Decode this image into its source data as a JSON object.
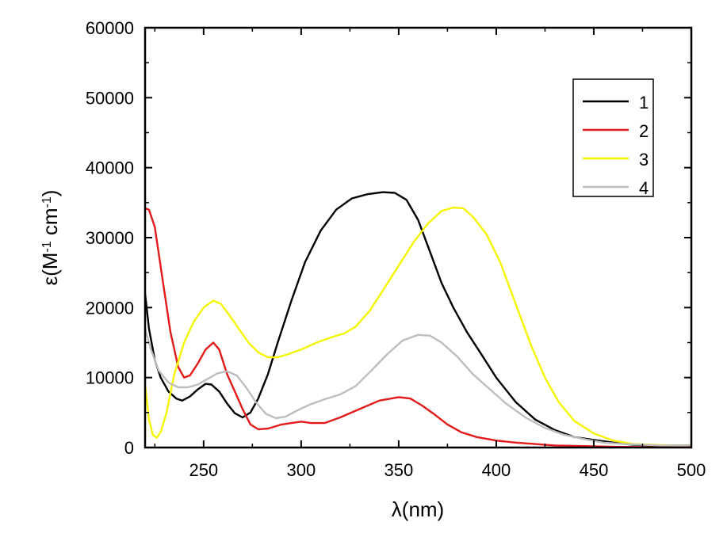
{
  "chart_data": {
    "type": "line",
    "xlabel": "λ(nm)",
    "ylabel": {
      "base": "ε(M",
      "exp1": "-1",
      "mid": " cm",
      "exp2": "-1",
      "end": ")"
    },
    "xlim": [
      220,
      500
    ],
    "ylim": [
      0,
      60000
    ],
    "xticks": [
      250,
      300,
      350,
      400,
      450,
      500
    ],
    "yticks": [
      0,
      10000,
      20000,
      30000,
      40000,
      50000,
      60000
    ],
    "grid": false,
    "legend_position": "top-right",
    "series": [
      {
        "name": "1",
        "color": "#000000",
        "points": [
          [
            220,
            22000
          ],
          [
            222,
            17000
          ],
          [
            225,
            12500
          ],
          [
            228,
            10000
          ],
          [
            232,
            8000
          ],
          [
            236,
            7000
          ],
          [
            239,
            6700
          ],
          [
            243,
            7300
          ],
          [
            247,
            8300
          ],
          [
            251,
            9100
          ],
          [
            254,
            9000
          ],
          [
            258,
            8000
          ],
          [
            262,
            6300
          ],
          [
            266,
            4900
          ],
          [
            270,
            4300
          ],
          [
            274,
            5000
          ],
          [
            278,
            7000
          ],
          [
            283,
            10500
          ],
          [
            288,
            15000
          ],
          [
            295,
            21000
          ],
          [
            302,
            26500
          ],
          [
            310,
            31000
          ],
          [
            318,
            34000
          ],
          [
            326,
            35600
          ],
          [
            334,
            36200
          ],
          [
            342,
            36500
          ],
          [
            348,
            36400
          ],
          [
            354,
            35400
          ],
          [
            360,
            32500
          ],
          [
            366,
            28000
          ],
          [
            372,
            23500
          ],
          [
            378,
            20000
          ],
          [
            385,
            16500
          ],
          [
            392,
            13500
          ],
          [
            400,
            10000
          ],
          [
            410,
            6500
          ],
          [
            420,
            4000
          ],
          [
            430,
            2500
          ],
          [
            440,
            1500
          ],
          [
            450,
            1100
          ],
          [
            460,
            700
          ],
          [
            470,
            400
          ],
          [
            480,
            300
          ],
          [
            490,
            300
          ],
          [
            500,
            300
          ]
        ]
      },
      {
        "name": "2",
        "color": "#e31a1a",
        "points": [
          [
            220,
            34200
          ],
          [
            222,
            34000
          ],
          [
            225,
            31500
          ],
          [
            229,
            24000
          ],
          [
            233,
            16500
          ],
          [
            237,
            11500
          ],
          [
            240,
            10000
          ],
          [
            243,
            10300
          ],
          [
            247,
            12000
          ],
          [
            251,
            14000
          ],
          [
            255,
            15000
          ],
          [
            258,
            14000
          ],
          [
            262,
            10500
          ],
          [
            266,
            8000
          ],
          [
            270,
            5500
          ],
          [
            274,
            3300
          ],
          [
            278,
            2600
          ],
          [
            283,
            2700
          ],
          [
            290,
            3300
          ],
          [
            295,
            3500
          ],
          [
            300,
            3700
          ],
          [
            305,
            3500
          ],
          [
            312,
            3500
          ],
          [
            320,
            4300
          ],
          [
            330,
            5500
          ],
          [
            340,
            6700
          ],
          [
            350,
            7200
          ],
          [
            356,
            7000
          ],
          [
            362,
            6000
          ],
          [
            368,
            4800
          ],
          [
            375,
            3300
          ],
          [
            382,
            2200
          ],
          [
            390,
            1500
          ],
          [
            400,
            1000
          ],
          [
            410,
            700
          ],
          [
            420,
            500
          ],
          [
            430,
            300
          ],
          [
            445,
            200
          ],
          [
            460,
            100
          ],
          [
            480,
            50
          ],
          [
            500,
            30
          ]
        ]
      },
      {
        "name": "3",
        "color": "#f5f500",
        "points": [
          [
            220,
            9000
          ],
          [
            222,
            4000
          ],
          [
            224,
            1800
          ],
          [
            226,
            1400
          ],
          [
            228,
            2200
          ],
          [
            231,
            5000
          ],
          [
            235,
            10500
          ],
          [
            240,
            15000
          ],
          [
            245,
            18000
          ],
          [
            250,
            20000
          ],
          [
            255,
            21000
          ],
          [
            259,
            20500
          ],
          [
            263,
            19000
          ],
          [
            268,
            17000
          ],
          [
            273,
            15000
          ],
          [
            278,
            13600
          ],
          [
            283,
            12900
          ],
          [
            288,
            12900
          ],
          [
            293,
            13300
          ],
          [
            300,
            14000
          ],
          [
            308,
            15000
          ],
          [
            316,
            15800
          ],
          [
            322,
            16300
          ],
          [
            328,
            17300
          ],
          [
            335,
            19500
          ],
          [
            342,
            22500
          ],
          [
            350,
            26000
          ],
          [
            358,
            29500
          ],
          [
            365,
            32000
          ],
          [
            372,
            33800
          ],
          [
            378,
            34300
          ],
          [
            383,
            34200
          ],
          [
            388,
            33000
          ],
          [
            395,
            30500
          ],
          [
            402,
            26500
          ],
          [
            410,
            20500
          ],
          [
            418,
            14500
          ],
          [
            425,
            10000
          ],
          [
            432,
            6500
          ],
          [
            440,
            3800
          ],
          [
            450,
            2000
          ],
          [
            460,
            1000
          ],
          [
            470,
            500
          ],
          [
            480,
            400
          ],
          [
            490,
            300
          ],
          [
            500,
            300
          ]
        ]
      },
      {
        "name": "4",
        "color": "#bdbdbd",
        "points": [
          [
            220,
            17000
          ],
          [
            223,
            14000
          ],
          [
            227,
            11000
          ],
          [
            232,
            9300
          ],
          [
            237,
            8600
          ],
          [
            242,
            8600
          ],
          [
            247,
            9000
          ],
          [
            252,
            9800
          ],
          [
            257,
            10600
          ],
          [
            262,
            10900
          ],
          [
            267,
            10300
          ],
          [
            272,
            8500
          ],
          [
            277,
            6400
          ],
          [
            282,
            4800
          ],
          [
            287,
            4200
          ],
          [
            292,
            4400
          ],
          [
            298,
            5300
          ],
          [
            305,
            6200
          ],
          [
            312,
            6900
          ],
          [
            320,
            7600
          ],
          [
            328,
            8800
          ],
          [
            336,
            11000
          ],
          [
            344,
            13300
          ],
          [
            352,
            15300
          ],
          [
            360,
            16100
          ],
          [
            366,
            16000
          ],
          [
            372,
            15000
          ],
          [
            380,
            13000
          ],
          [
            388,
            10500
          ],
          [
            396,
            8500
          ],
          [
            405,
            6300
          ],
          [
            415,
            4300
          ],
          [
            425,
            2800
          ],
          [
            435,
            1800
          ],
          [
            445,
            1200
          ],
          [
            455,
            700
          ],
          [
            465,
            500
          ],
          [
            475,
            400
          ],
          [
            485,
            300
          ],
          [
            500,
            300
          ]
        ]
      }
    ]
  }
}
